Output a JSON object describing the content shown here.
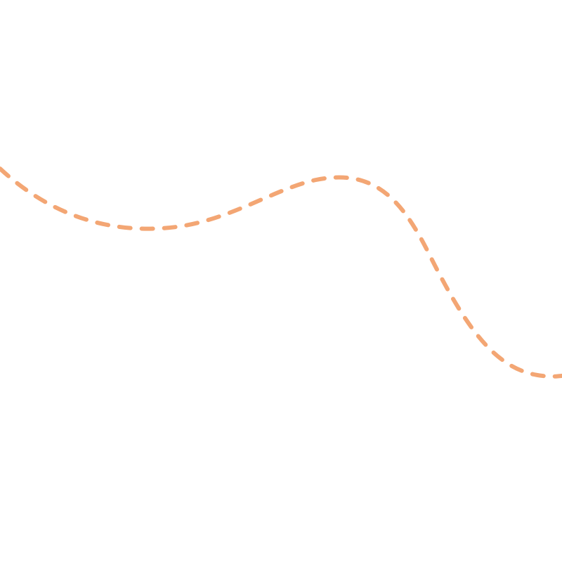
{
  "line": {
    "color": "#f3a674",
    "style": "dashed"
  }
}
